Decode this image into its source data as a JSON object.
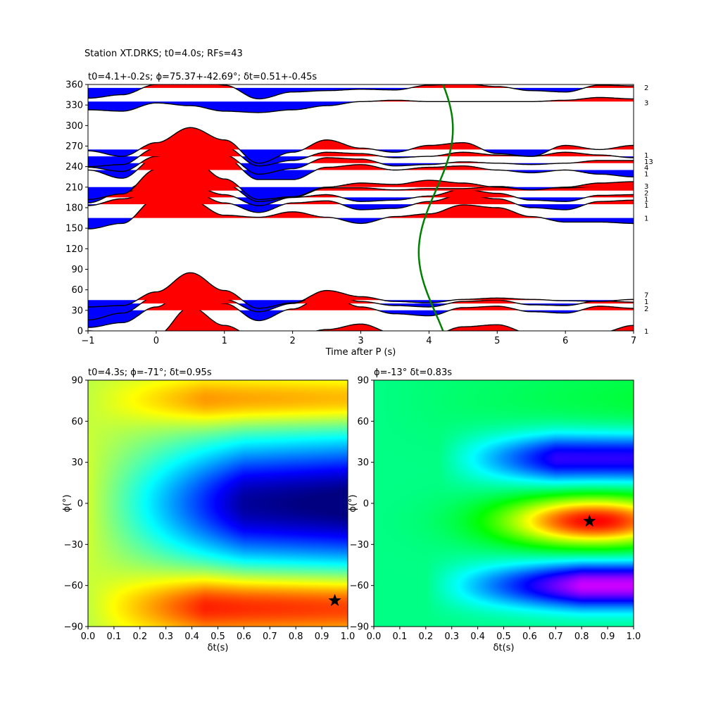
{
  "suptitle": "Station XT.DRKS; t0=4.0s; RFs=43",
  "chart_data": [
    {
      "type": "line",
      "title": "t0=4.1+-0.2s; ϕ=75.37+-42.69°; δt=0.51+-0.45s",
      "xlabel": "Time after P (s)",
      "ylabel": "",
      "xlim": [
        -1,
        7
      ],
      "ylim": [
        0,
        360
      ],
      "xticks": [
        "−1",
        "0",
        "1",
        "2",
        "3",
        "4",
        "5",
        "6",
        "7"
      ],
      "yticks": [
        "0",
        "30",
        "60",
        "90",
        "120",
        "150",
        "180",
        "210",
        "240",
        "270",
        "300",
        "330",
        "360"
      ],
      "colors": {
        "positive": "#ff0000",
        "negative": "#0000ff",
        "trace": "#000000",
        "timing_curve": "#008000"
      },
      "traces": [
        {
          "baz": 0,
          "count": "1",
          "count_label_y": 0,
          "amp": [
            0,
            -3,
            -7,
            35,
            8,
            -12,
            -8,
            2,
            10,
            -4,
            -8,
            6,
            9,
            -4,
            -6,
            -3,
            8
          ]
        },
        {
          "baz": 30,
          "count": "2",
          "count_label_y": 33,
          "amp": [
            -25,
            -18,
            5,
            38,
            10,
            -15,
            2,
            24,
            5,
            -5,
            -8,
            4,
            6,
            -2,
            -4,
            6,
            3
          ]
        },
        {
          "baz": 40,
          "count": "1",
          "count_label_y": 43,
          "amp": [
            -24,
            -14,
            10,
            28,
            6,
            -12,
            0,
            18,
            3,
            -3,
            -5,
            3,
            5,
            -2,
            -3,
            4,
            2
          ]
        },
        {
          "baz": 45,
          "count": "7",
          "count_label_y": 53,
          "amp": [
            -10,
            -8,
            12,
            40,
            14,
            -12,
            -4,
            14,
            5,
            -2,
            -4,
            1,
            3,
            1,
            -1,
            -2,
            1
          ]
        },
        {
          "baz": 165,
          "count": "1",
          "count_label_y": 165,
          "amp": [
            -16,
            -8,
            28,
            26,
            4,
            1,
            9,
            1,
            -8,
            2,
            6,
            19,
            15,
            2,
            -6,
            -6,
            -8
          ]
        },
        {
          "baz": 185,
          "count": "1",
          "count_label_y": 184,
          "amp": [
            -2,
            8,
            18,
            20,
            2,
            -12,
            2,
            5,
            -8,
            -6,
            4,
            14,
            8,
            -5,
            -8,
            4,
            6
          ]
        },
        {
          "baz": 195,
          "count": "1",
          "count_label_y": 193,
          "amp": [
            -8,
            8,
            18,
            18,
            4,
            -12,
            0,
            4,
            -6,
            -4,
            2,
            12,
            6,
            -4,
            -6,
            3,
            4
          ]
        },
        {
          "baz": 205,
          "count": "2",
          "count_label_y": 202,
          "amp": [
            -12,
            0,
            22,
            32,
            10,
            -16,
            -10,
            4,
            4,
            1,
            3,
            3,
            6,
            3,
            4,
            6,
            8
          ]
        },
        {
          "baz": 210,
          "count": "3",
          "count_label_y": 212,
          "amp": [
            -18,
            -10,
            26,
            42,
            12,
            -18,
            -14,
            0,
            6,
            4,
            10,
            6,
            0,
            -4,
            0,
            6,
            8
          ]
        },
        {
          "baz": 235,
          "count": "1",
          "count_label_y": 230,
          "amp": [
            0,
            -12,
            18,
            42,
            18,
            -14,
            -14,
            4,
            8,
            0,
            4,
            6,
            0,
            -4,
            0,
            -6,
            -10
          ]
        },
        {
          "baz": 245,
          "count": "4",
          "count_label_y": 239,
          "amp": [
            -6,
            -12,
            10,
            36,
            12,
            -16,
            -8,
            8,
            6,
            -4,
            -2,
            2,
            0,
            -2,
            0,
            4,
            4
          ]
        },
        {
          "baz": 255,
          "count": "13",
          "count_label_y": 248,
          "amp": [
            -15,
            -12,
            12,
            38,
            14,
            -14,
            -6,
            6,
            4,
            -2,
            0,
            6,
            2,
            0,
            6,
            2,
            -2
          ]
        },
        {
          "baz": 265,
          "count": "1",
          "count_label_y": 257,
          "amp": [
            -2,
            -10,
            10,
            32,
            14,
            -20,
            -4,
            14,
            2,
            -4,
            6,
            10,
            -6,
            -10,
            6,
            0,
            6
          ]
        },
        {
          "baz": 335,
          "count": "3",
          "count_label_y": 334,
          "amp": [
            -12,
            -14,
            -2,
            -6,
            -14,
            -16,
            -12,
            -6,
            0,
            2,
            0,
            0,
            0,
            0,
            2,
            6,
            4
          ]
        },
        {
          "baz": 355,
          "count": "2",
          "count_label_y": 356,
          "amp": [
            -15,
            -10,
            5,
            20,
            4,
            -16,
            -6,
            -4,
            -2,
            -3,
            4,
            6,
            2,
            -4,
            -6,
            4,
            3
          ]
        }
      ],
      "timing_curve": {
        "x_center": 4.1,
        "x_amplitude": 0.25,
        "period_deg": 360,
        "phase_deg": 205
      }
    },
    {
      "type": "heatmap",
      "title": "t0=4.3s; ϕ=-71°; δt=0.95s",
      "xlabel": "δt(s)",
      "ylabel": "ϕ(°)",
      "xlim": [
        0,
        1
      ],
      "ylim": [
        -90,
        90
      ],
      "xticks": [
        "0.0",
        "0.1",
        "0.2",
        "0.3",
        "0.4",
        "0.5",
        "0.6",
        "0.7",
        "0.8",
        "0.9",
        "1.0"
      ],
      "yticks": [
        "−90",
        "−60",
        "−30",
        "0",
        "30",
        "60",
        "90"
      ],
      "colormap": "jet",
      "best": {
        "dt": 0.95,
        "phi": -71
      }
    },
    {
      "type": "heatmap",
      "title": "ϕ=-13° δt=0.83s",
      "xlabel": "δt(s)",
      "ylabel": "ϕ(°)",
      "xlim": [
        0,
        1
      ],
      "ylim": [
        -90,
        90
      ],
      "xticks": [
        "0.0",
        "0.1",
        "0.2",
        "0.3",
        "0.4",
        "0.5",
        "0.6",
        "0.7",
        "0.8",
        "0.9",
        "1.0"
      ],
      "yticks": [
        "−90",
        "−60",
        "−30",
        "0",
        "30",
        "60",
        "90"
      ],
      "colormap": "hsv",
      "best": {
        "dt": 0.83,
        "phi": -13
      }
    }
  ]
}
